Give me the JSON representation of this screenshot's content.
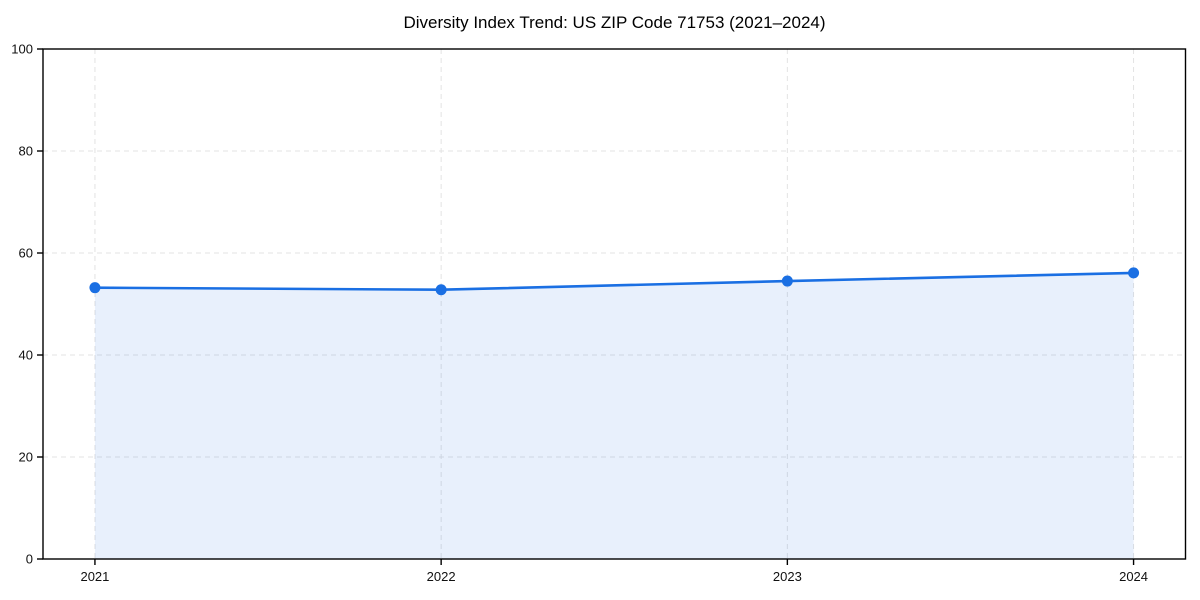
{
  "chart_data": {
    "type": "line",
    "title": "Diversity Index Trend: US ZIP Code 71753 (2021–2024)",
    "categories": [
      "2021",
      "2022",
      "2023",
      "2024"
    ],
    "values": [
      53.2,
      52.8,
      54.5,
      56.1
    ],
    "xlabel": "",
    "ylabel": "",
    "ylim": [
      0,
      100
    ],
    "y_ticks": [
      0,
      20,
      40,
      60,
      80,
      100
    ],
    "grid": "dashed-both-axes",
    "legend_position": "none",
    "area_fill_under_line": true,
    "marker": "circle",
    "colors": {
      "line": "#1a6fe3",
      "marker": "#1a6fe3",
      "area_fill": "rgba(26,111,227,0.10)",
      "grid": "#e3e3e3",
      "axis_spine": "#000000",
      "tick_label": "#111111",
      "title": "#000000",
      "background": "#ffffff"
    }
  }
}
